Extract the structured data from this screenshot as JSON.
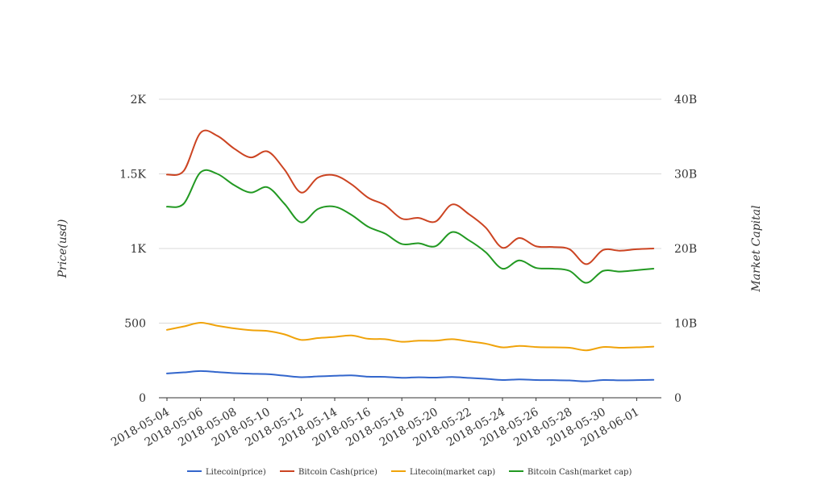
{
  "chart_data": {
    "type": "line",
    "x": [
      "2018-05-04",
      "2018-05-05",
      "2018-05-06",
      "2018-05-07",
      "2018-05-08",
      "2018-05-09",
      "2018-05-10",
      "2018-05-11",
      "2018-05-12",
      "2018-05-13",
      "2018-05-14",
      "2018-05-15",
      "2018-05-16",
      "2018-05-17",
      "2018-05-18",
      "2018-05-19",
      "2018-05-20",
      "2018-05-21",
      "2018-05-22",
      "2018-05-23",
      "2018-05-24",
      "2018-05-25",
      "2018-05-26",
      "2018-05-27",
      "2018-05-28",
      "2018-05-29",
      "2018-05-30",
      "2018-05-31",
      "2018-06-01",
      "2018-06-02"
    ],
    "x_tick_labels": [
      "2018-05-04",
      "2018-05-06",
      "2018-05-08",
      "2018-05-10",
      "2018-05-12",
      "2018-05-14",
      "2018-05-16",
      "2018-05-18",
      "2018-05-20",
      "2018-05-22",
      "2018-05-24",
      "2018-05-26",
      "2018-05-28",
      "2018-05-30",
      "2018-06-01"
    ],
    "y_left": {
      "label": "Price(usd)",
      "ylim": [
        0,
        2000
      ],
      "ticks": [
        0,
        500,
        1000,
        1500,
        2000
      ],
      "tick_labels": [
        "0",
        "500",
        "1K",
        "1.5K",
        "2K"
      ]
    },
    "y_right": {
      "label": "Market Capital",
      "ylim": [
        0,
        40000000000
      ],
      "ticks": [
        0,
        10000000000,
        20000000000,
        30000000000,
        40000000000
      ],
      "tick_labels": [
        "0",
        "10B",
        "20B",
        "30B",
        "40B"
      ]
    },
    "grid": true,
    "legend_position": "bottom",
    "series": [
      {
        "name": "Litecoin(price)",
        "axis": "left",
        "color": "#3366cc",
        "values": [
          163,
          170,
          179,
          172,
          165,
          161,
          158,
          148,
          138,
          143,
          147,
          150,
          141,
          140,
          134,
          137,
          135,
          139,
          133,
          127,
          119,
          123,
          119,
          118,
          116,
          110,
          119,
          117,
          118,
          120
        ]
      },
      {
        "name": "Bitcoin Cash(price)",
        "axis": "left",
        "color": "#cc4422",
        "values": [
          1495,
          1520,
          1775,
          1755,
          1670,
          1610,
          1650,
          1530,
          1375,
          1475,
          1490,
          1430,
          1340,
          1290,
          1200,
          1205,
          1180,
          1295,
          1230,
          1140,
          1005,
          1070,
          1015,
          1010,
          995,
          895,
          990,
          985,
          995,
          1000
        ]
      },
      {
        "name": "Litecoin(market cap)",
        "axis": "right",
        "color": "#f0a30a",
        "values": [
          9100000000,
          9550000000,
          10050000000,
          9650000000,
          9300000000,
          9050000000,
          8950000000,
          8500000000,
          7750000000,
          8000000000,
          8150000000,
          8350000000,
          7900000000,
          7850000000,
          7500000000,
          7650000000,
          7650000000,
          7850000000,
          7550000000,
          7250000000,
          6750000000,
          6950000000,
          6800000000,
          6750000000,
          6700000000,
          6350000000,
          6800000000,
          6700000000,
          6750000000,
          6850000000
        ]
      },
      {
        "name": "Bitcoin Cash(market cap)",
        "axis": "right",
        "color": "#229922",
        "values": [
          25600000000,
          26000000000,
          30200000000,
          30000000000,
          28500000000,
          27500000000,
          28200000000,
          26000000000,
          23500000000,
          25300000000,
          25600000000,
          24500000000,
          22900000000,
          22000000000,
          20600000000,
          20700000000,
          20300000000,
          22200000000,
          21100000000,
          19500000000,
          17300000000,
          18400000000,
          17400000000,
          17300000000,
          17000000000,
          15400000000,
          17000000000,
          16900000000,
          17100000000,
          17300000000
        ]
      }
    ]
  }
}
